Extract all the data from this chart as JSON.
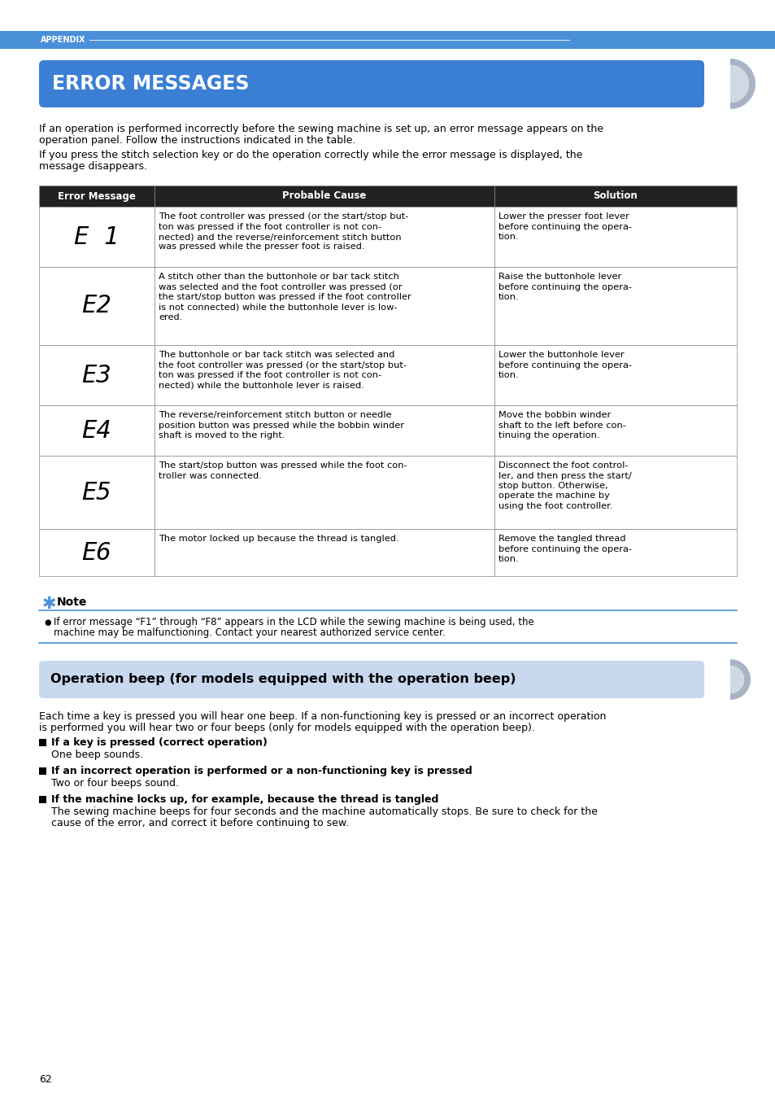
{
  "page_bg": "#ffffff",
  "page_num": "62",
  "appendix_bar_color": "#4a90d9",
  "appendix_text": "APPENDIX",
  "section1_title": "ERROR MESSAGES",
  "section1_bg": "#3a7fd4",
  "section1_text_color": "#ffffff",
  "section2_title": "Operation beep (for models equipped with the operation beep)",
  "section2_bg": "#c8d8ee",
  "section2_text_color": "#000000",
  "intro_text1": "If an operation is performed incorrectly before the sewing machine is set up, an error message appears on the",
  "intro_text1b": "operation panel. Follow the instructions indicated in the table.",
  "intro_text2": "If you press the stitch selection key or do the operation correctly while the error message is displayed, the",
  "intro_text2b": "message disappears.",
  "table_header_bg": "#222222",
  "table_header_text_color": "#ffffff",
  "table_col1_header": "Error Message",
  "table_col2_header": "Probable Cause",
  "table_col3_header": "Solution",
  "table_border_color": "#888888",
  "error_codes": [
    "E 1",
    "E2",
    "E3",
    "E4",
    "E5",
    "E6"
  ],
  "probable_causes": [
    "The foot controller was pressed (or the start/stop but-\nton was pressed if the foot controller is not con-\nnected) and the reverse/reinforcement stitch button\nwas pressed while the presser foot is raised.",
    "A stitch other than the buttonhole or bar tack stitch\nwas selected and the foot controller was pressed (or\nthe start/stop button was pressed if the foot controller\nis not connected) while the buttonhole lever is low-\nered.",
    "The buttonhole or bar tack stitch was selected and\nthe foot controller was pressed (or the start/stop but-\nton was pressed if the foot controller is not con-\nnected) while the buttonhole lever is raised.",
    "The reverse/reinforcement stitch button or needle\nposition button was pressed while the bobbin winder\nshaft is moved to the right.",
    "The start/stop button was pressed while the foot con-\ntroller was connected.",
    "The motor locked up because the thread is tangled."
  ],
  "solutions": [
    "Lower the presser foot lever\nbefore continuing the opera-\ntion.",
    "Raise the buttonhole lever\nbefore continuing the opera-\ntion.",
    "Lower the buttonhole lever\nbefore continuing the opera-\ntion.",
    "Move the bobbin winder\nshaft to the left before con-\ntinuing the operation.",
    "Disconnect the foot control-\nler, and then press the start/\nstop button. Otherwise,\noperate the machine by\nusing the foot controller.",
    "Remove the tangled thread\nbefore continuing the opera-\ntion."
  ],
  "note_text1": "If error message “F1” through “F8” appears in the LCD while the sewing machine is being used, the",
  "note_text2": "machine may be malfunctioning. Contact your nearest authorized service center.",
  "beep_intro1": "Each time a key is pressed you will hear one beep. If a non-functioning key is pressed or an incorrect operation",
  "beep_intro2": "is performed you will hear two or four beeps (only for models equipped with the operation beep).",
  "beep_bold1": "If a key is pressed (correct operation)",
  "beep_normal1": "One beep sounds.",
  "beep_bold2": "If an incorrect operation is performed or a non-functioning key is pressed",
  "beep_normal2": "Two or four beeps sound.",
  "beep_bold3": "If the machine locks up, for example, because the thread is tangled",
  "beep_normal3a": "The sewing machine beeps for four seconds and the machine automatically stops. Be sure to check for the",
  "beep_normal3b": "cause of the error, and correct it before continuing to sew.",
  "accent_blue": "#4a90d9",
  "gray_semicircle_outer": "#a8b4c4",
  "gray_semicircle_inner": "#d0d8e4"
}
